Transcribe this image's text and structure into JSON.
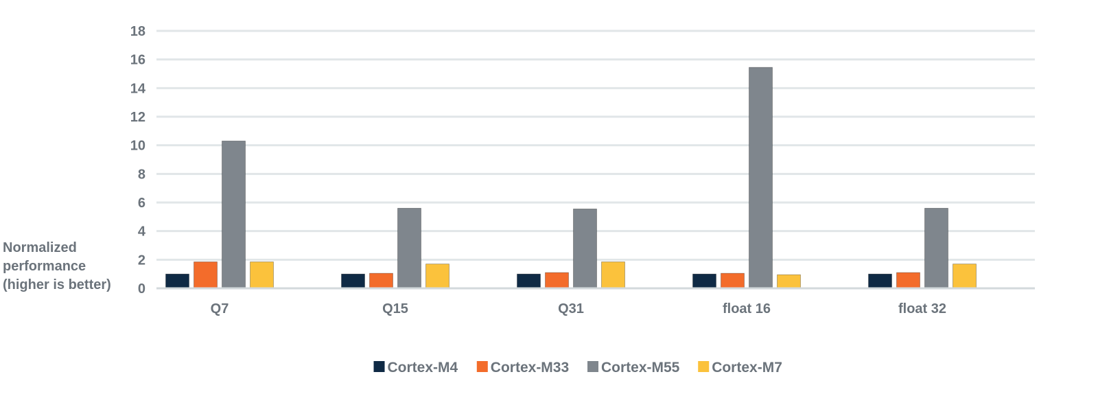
{
  "chart_data": {
    "type": "bar",
    "title": "",
    "xlabel": "",
    "ylabel": "Normalized performance (higher is better)",
    "ylabel_lines": [
      "Normalized",
      "performance",
      "(higher is better)"
    ],
    "ylim": [
      0,
      18
    ],
    "yticks": [
      0,
      2,
      4,
      6,
      8,
      10,
      12,
      14,
      16,
      18
    ],
    "grid": true,
    "legend": "bottom",
    "categories": [
      "Q7",
      "Q15",
      "Q31",
      "float 16",
      "float 32"
    ],
    "series": [
      {
        "name": "Cortex-M4",
        "color": "#0f2a45",
        "values": [
          1.0,
          1.0,
          1.0,
          1.0,
          1.0
        ]
      },
      {
        "name": "Cortex-M33",
        "color": "#f36c2b",
        "values": [
          1.85,
          1.05,
          1.1,
          1.05,
          1.1
        ]
      },
      {
        "name": "Cortex-M55",
        "color": "#7f868d",
        "values": [
          10.3,
          5.6,
          5.55,
          15.45,
          5.6
        ]
      },
      {
        "name": "Cortex-M7",
        "color": "#fbc23c",
        "values": [
          1.85,
          1.7,
          1.85,
          0.95,
          1.7
        ]
      }
    ]
  }
}
